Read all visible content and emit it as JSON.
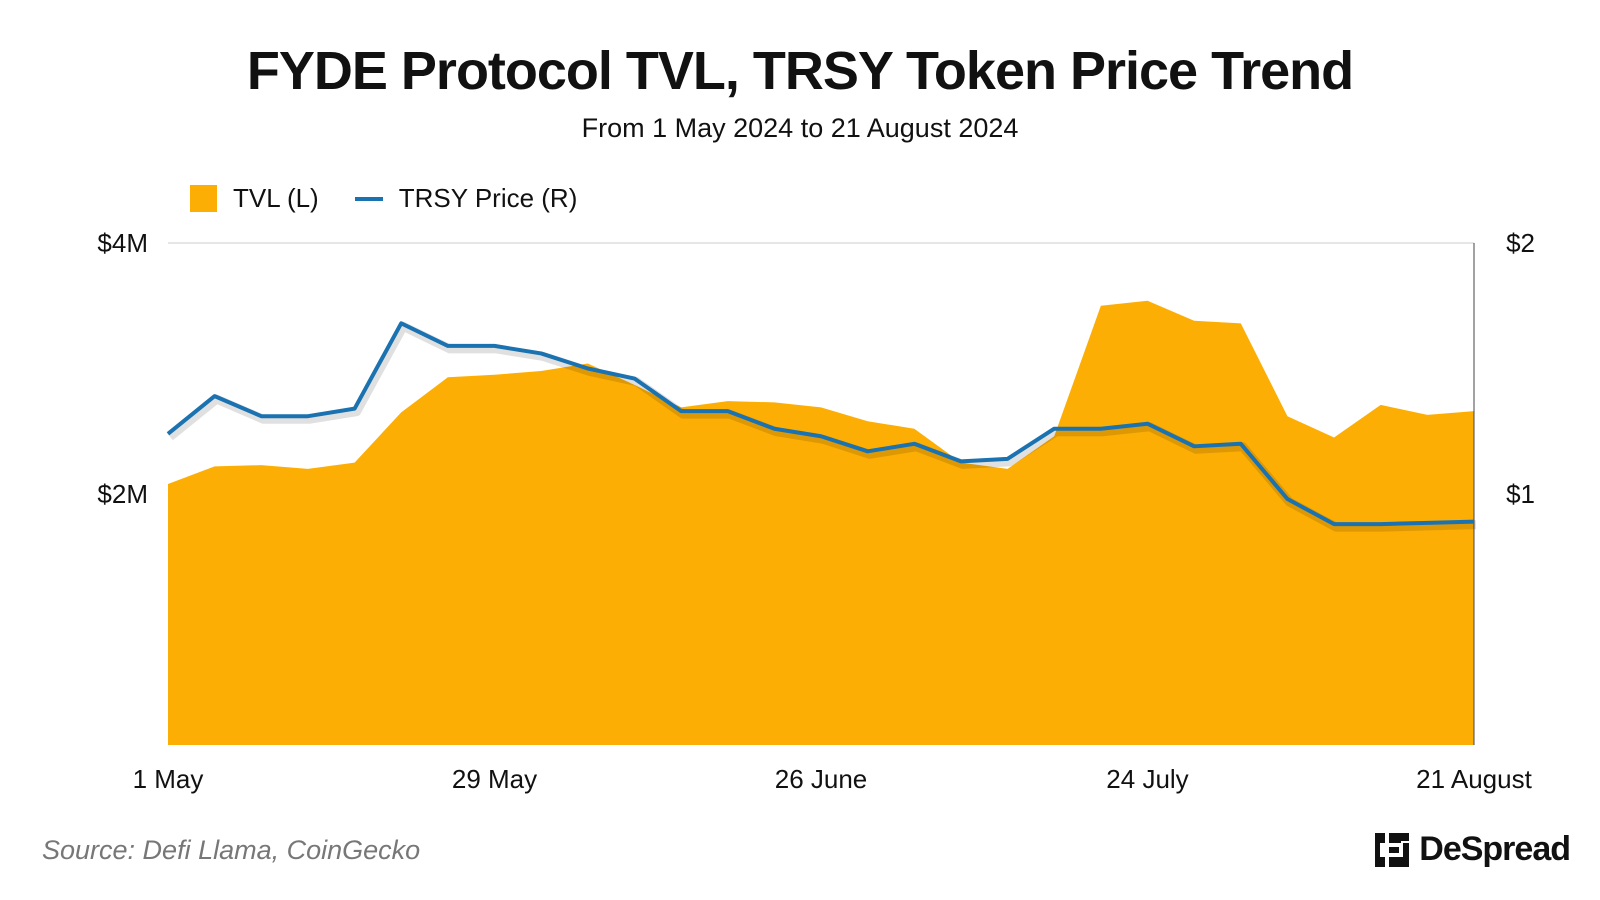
{
  "chart_data": {
    "type": "area+line",
    "title": "FYDE Protocol TVL, TRSY Token Price Trend",
    "subtitle": "From 1 May 2024 to 21 August 2024",
    "legend": [
      {
        "label": "TVL (L)",
        "kind": "area",
        "color": "#FCAE05"
      },
      {
        "label": "TRSY Price (R)",
        "kind": "line",
        "color": "#1A72B0"
      }
    ],
    "legend_position": "top-left",
    "x": [
      "1 May",
      "5 May",
      "9 May",
      "13 May",
      "17 May",
      "21 May",
      "25 May",
      "29 May",
      "2 June",
      "6 June",
      "10 June",
      "14 June",
      "18 June",
      "22 June",
      "26 June",
      "30 June",
      "4 July",
      "8 July",
      "12 July",
      "16 July",
      "20 July",
      "24 July",
      "28 July",
      "1 August",
      "5 August",
      "9 August",
      "13 August",
      "17 August",
      "21 August"
    ],
    "x_ticks": [
      "1 May",
      "29 May",
      "26 June",
      "24 July",
      "21 August"
    ],
    "y_left": {
      "label": "TVL",
      "range": [
        0,
        4000000
      ],
      "ticks": [
        2000000,
        4000000
      ],
      "tick_labels": [
        "$2M",
        "$4M"
      ]
    },
    "y_right": {
      "label": "TRSY Price",
      "range": [
        0,
        2
      ],
      "ticks": [
        1,
        2
      ],
      "tick_labels": [
        "$1",
        "$2"
      ]
    },
    "series": [
      {
        "name": "TVL (L)",
        "axis": "left",
        "type": "area",
        "values": [
          2080000,
          2220000,
          2230000,
          2200000,
          2250000,
          2650000,
          2930000,
          2950000,
          2980000,
          3040000,
          2870000,
          2690000,
          2740000,
          2730000,
          2690000,
          2580000,
          2520000,
          2250000,
          2200000,
          2460000,
          3500000,
          3540000,
          3380000,
          3360000,
          2620000,
          2450000,
          2710000,
          2630000,
          2660000
        ]
      },
      {
        "name": "TRSY Price (R)",
        "axis": "right",
        "type": "line",
        "values": [
          1.24,
          1.39,
          1.31,
          1.31,
          1.34,
          1.68,
          1.59,
          1.59,
          1.56,
          1.5,
          1.46,
          1.33,
          1.33,
          1.26,
          1.23,
          1.17,
          1.2,
          1.13,
          1.14,
          1.26,
          1.26,
          1.28,
          1.19,
          1.2,
          0.98,
          0.88,
          0.88,
          0.885,
          0.89
        ]
      }
    ],
    "grid": "top line only"
  },
  "source": "Source: Defi Llama, CoinGecko",
  "brand": {
    "name": "DeSpread",
    "icon": "despread-logo-icon"
  }
}
